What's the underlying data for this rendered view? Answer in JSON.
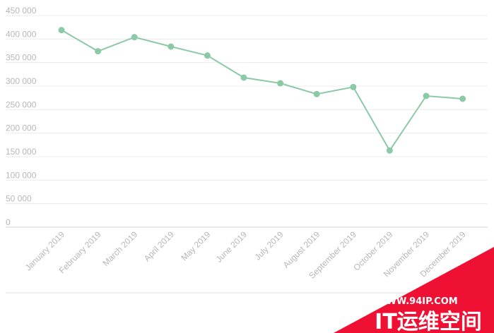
{
  "chart_data": {
    "type": "line",
    "title": "",
    "xlabel": "",
    "ylabel": "",
    "ylim": [
      0,
      450000
    ],
    "yticks": [
      0,
      50000,
      100000,
      150000,
      200000,
      250000,
      300000,
      350000,
      400000,
      450000
    ],
    "ytick_labels": [
      "0",
      "50 000",
      "100 000",
      "150 000",
      "200 000",
      "250 000",
      "300 000",
      "350 000",
      "400 000",
      "450 000"
    ],
    "categories": [
      "January 2019",
      "February 2019",
      "March 2019",
      "April 2019",
      "May 2019",
      "June 2019",
      "July 2019",
      "August 2019",
      "September 2019",
      "October 2019",
      "November 2019",
      "December 2019"
    ],
    "series": [
      {
        "values": [
          419000,
          374000,
          404000,
          384000,
          365000,
          318000,
          306000,
          283000,
          298000,
          163000,
          279000,
          273000
        ],
        "color": "#8cc9a6"
      }
    ],
    "grid": true,
    "legend": "none"
  },
  "watermark": {
    "url": "WWW.94IP.COM",
    "text": "IT运维空间",
    "color": "#ee1133"
  }
}
